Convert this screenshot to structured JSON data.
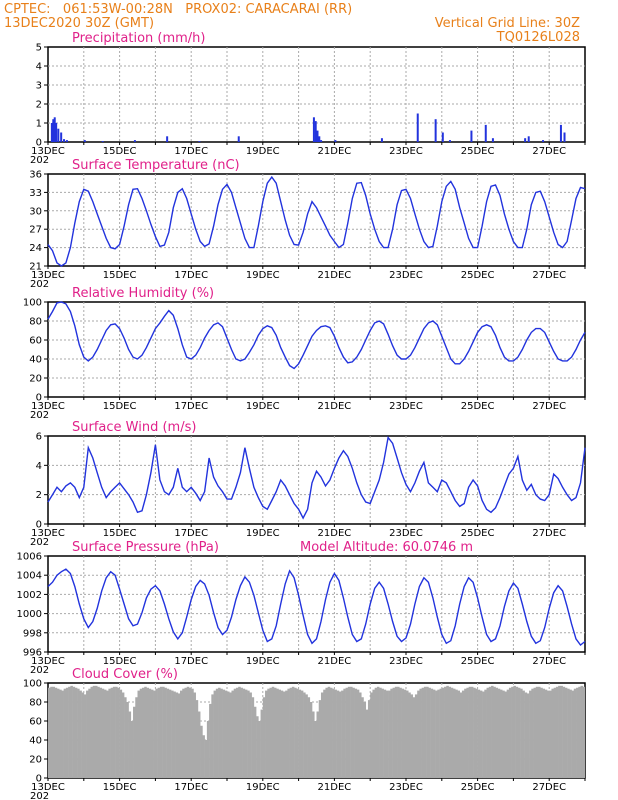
{
  "header": {
    "left_line1": "CPTEC:   061:53W-00:28N   PROX02: CARACARAI (RR)",
    "left_line2": "13DEC2020 30Z (GMT)",
    "right_line2": "Vertical Grid Line: 30Z",
    "right_line3": "TQ0126L028"
  },
  "colors": {
    "header": "#e8801a",
    "title": "#e0218a",
    "series": "#2233dd",
    "cloud": "#aaaaaa",
    "grid": "#aaaaaa"
  },
  "x_axis": {
    "tick_labels": [
      "13DEC",
      "15DEC",
      "17DEC",
      "19DEC",
      "21DEC",
      "23DEC",
      "25DEC",
      "27DEC"
    ],
    "year_stub": "202"
  },
  "chart_data": [
    {
      "type": "bar",
      "title": "Precipitation (mm/h)",
      "ylim": [
        0,
        5
      ],
      "yticks": [
        "0",
        "1",
        "2",
        "3",
        "4",
        "5"
      ],
      "x_days_start": "13DEC2020",
      "x": [
        0.08,
        0.12,
        0.16,
        0.2,
        0.26,
        0.34,
        0.42,
        0.5,
        1.0,
        1.5,
        2.4,
        3.3,
        4.2,
        5.3,
        7.4,
        7.45,
        7.5,
        7.55,
        7.6,
        8.0,
        9.3,
        10.3,
        10.8,
        11.0,
        11.2,
        11.8,
        12.2,
        12.4,
        13.3,
        13.4,
        13.8,
        14.3,
        14.4
      ],
      "values": [
        1.0,
        1.2,
        1.3,
        1.0,
        0.7,
        0.5,
        0.15,
        0.1,
        0.1,
        0.05,
        0.1,
        0.3,
        0.05,
        0.3,
        1.3,
        1.1,
        0.6,
        0.3,
        0.1,
        0.1,
        0.2,
        1.5,
        1.2,
        0.5,
        0.1,
        0.6,
        0.9,
        0.2,
        0.2,
        0.3,
        0.1,
        0.9,
        0.5
      ]
    },
    {
      "type": "line",
      "title": "Surface Temperature (nC)",
      "ylim": [
        21,
        36
      ],
      "yticks": [
        "21",
        "24",
        "27",
        "30",
        "33",
        "36"
      ],
      "series": [
        {
          "x_step_days": 0.125,
          "values": [
            24.5,
            23.5,
            21.5,
            21,
            21.5,
            24,
            28,
            31.5,
            33.5,
            33.2,
            31.5,
            29.5,
            27.5,
            25.5,
            24,
            23.8,
            24.5,
            27.5,
            31,
            33.5,
            33.6,
            32,
            30,
            27.8,
            25.8,
            24.2,
            24.4,
            26.5,
            30.5,
            33,
            33.6,
            32,
            29.5,
            27,
            25,
            24.2,
            24.6,
            27.5,
            31,
            33.5,
            34.3,
            33,
            30.5,
            28,
            25.5,
            24,
            24,
            27.5,
            31.5,
            34.5,
            35.5,
            34.5,
            31.5,
            28.5,
            26,
            24.5,
            24.4,
            26.5,
            29.5,
            31.5,
            30.5,
            29,
            27.5,
            26,
            25,
            24,
            24.5,
            28,
            32,
            34.5,
            34.6,
            32.5,
            29.5,
            27,
            25,
            24,
            24,
            27,
            31,
            33.3,
            33.5,
            32,
            29.5,
            27,
            25,
            24,
            24.2,
            27.5,
            31.5,
            34,
            34.8,
            33.5,
            30.5,
            28,
            25.5,
            24,
            24,
            27.5,
            31.5,
            34,
            34.2,
            32.5,
            29.5,
            27,
            25,
            24,
            24,
            27,
            31,
            33,
            33.2,
            31.5,
            29,
            26.5,
            24.5,
            24,
            25,
            28.5,
            32,
            33.8,
            33.6,
            32,
            29.5,
            27,
            25,
            24,
            25,
            28.5,
            32.5,
            34.8,
            34.5,
            32.5,
            29.5,
            27,
            25,
            24.2,
            25,
            28,
            31.5,
            33.5,
            34,
            33,
            31,
            32.5
          ]
        }
      ]
    },
    {
      "type": "line",
      "title": "Relative Humidity (%)",
      "ylim": [
        0,
        100
      ],
      "yticks": [
        "0",
        "20",
        "40",
        "60",
        "80",
        "100"
      ],
      "series": [
        {
          "x_step_days": 0.125,
          "values": [
            82,
            90,
            99,
            100,
            98,
            90,
            75,
            55,
            42,
            38,
            42,
            50,
            60,
            70,
            76,
            77,
            72,
            62,
            50,
            42,
            40,
            44,
            52,
            62,
            72,
            78,
            85,
            91,
            86,
            72,
            55,
            42,
            40,
            44,
            52,
            62,
            70,
            76,
            78,
            74,
            62,
            50,
            40,
            38,
            40,
            47,
            55,
            65,
            72,
            75,
            73,
            65,
            52,
            42,
            33,
            30,
            35,
            44,
            54,
            64,
            70,
            74,
            75,
            73,
            64,
            52,
            42,
            36,
            37,
            42,
            50,
            60,
            70,
            78,
            80,
            77,
            66,
            54,
            44,
            40,
            40,
            44,
            52,
            62,
            72,
            78,
            80,
            76,
            64,
            52,
            40,
            35,
            35,
            40,
            48,
            58,
            68,
            74,
            76,
            74,
            65,
            52,
            42,
            38,
            38,
            42,
            50,
            60,
            68,
            72,
            72,
            68,
            58,
            48,
            40,
            38,
            38,
            42,
            50,
            60,
            68,
            72,
            72,
            70,
            60,
            50,
            40,
            38,
            38,
            40,
            48,
            58,
            68,
            72,
            73,
            70,
            60,
            50,
            40,
            36,
            36,
            40,
            47,
            58,
            66,
            70,
            72,
            66,
            52,
            42,
            38,
            38,
            40,
            45
          ]
        }
      ]
    },
    {
      "type": "line",
      "title": "Surface Wind (m/s)",
      "ylim": [
        0,
        6
      ],
      "yticks": [
        "0",
        "2",
        "4",
        "6"
      ],
      "series": [
        {
          "x_step_days": 0.125,
          "values": [
            1.5,
            2,
            2.5,
            2.2,
            2.6,
            2.8,
            2.5,
            1.8,
            2.5,
            5.2,
            4.5,
            3.5,
            2.5,
            1.8,
            2.2,
            2.5,
            2.8,
            2.4,
            2,
            1.5,
            0.8,
            0.9,
            2,
            3.5,
            5.4,
            3,
            2.2,
            2,
            2.5,
            3.8,
            2.5,
            2.2,
            2.5,
            2.1,
            1.6,
            2.2,
            4.5,
            3.2,
            2.6,
            2.2,
            1.7,
            1.7,
            2.5,
            3.5,
            5.2,
            3.8,
            2.5,
            1.8,
            1.2,
            1,
            1.6,
            2.2,
            3,
            2.6,
            2,
            1.4,
            1,
            0.4,
            1,
            2.8,
            3.6,
            3.2,
            2.6,
            3,
            3.8,
            4.5,
            5,
            4.6,
            3.8,
            2.8,
            2,
            1.5,
            1.4,
            2.2,
            3,
            4.2,
            5.9,
            5.5,
            4.5,
            3.5,
            2.7,
            2.2,
            2.8,
            3.6,
            4.2,
            2.8,
            2.5,
            2.2,
            3,
            2.8,
            2.2,
            1.6,
            1.2,
            1.4,
            2.5,
            3,
            2.6,
            1.6,
            1,
            0.8,
            1.1,
            1.8,
            2.6,
            3.4,
            3.8,
            4.6,
            3,
            2.3,
            2.7,
            2,
            1.7,
            1.6,
            2,
            3.4,
            3.1,
            2.5,
            2,
            1.6,
            1.8,
            2.8,
            5.2,
            4,
            3.5,
            3.8,
            3,
            2.6,
            2.2,
            1.8,
            1.7,
            1.4,
            0.8,
            1.6,
            2.5,
            4.4,
            5,
            3.4,
            2.3,
            2.7,
            2,
            1.9,
            1.4,
            1.6,
            2,
            1.4,
            1.8,
            2.4,
            1.6,
            0.9,
            0.7,
            1,
            1.9,
            3,
            3.6,
            3.4,
            2.6,
            3,
            3.5,
            2.4,
            1.7,
            2,
            2.6,
            3.3,
            2.6,
            1.8,
            1.5,
            1.3,
            1.8,
            3.3,
            5.1,
            3.8,
            3.4,
            2.6,
            1.8,
            1.6,
            1.2,
            1.6,
            2.5,
            3.8,
            6.2,
            4.8,
            4.2,
            3.2,
            2.8,
            2.2,
            2.4,
            2.7,
            2.6,
            2.2,
            1.6,
            1.7,
            2.8,
            4.8,
            6.4,
            4,
            3,
            2.3,
            2.2,
            1.8,
            1.4,
            1,
            1.5,
            2.6,
            2.4,
            1.8,
            1.6,
            2.4,
            3,
            2.7,
            2.2,
            1.6,
            1.4,
            2,
            3.3,
            4.2,
            5.6,
            3.9,
            2.4,
            1.5,
            1.2,
            1.6,
            2.5,
            3.5,
            2.4,
            1.8,
            1.4,
            2.6,
            3.5,
            5.2,
            6.5,
            4.6,
            3.2,
            3,
            2.4,
            2,
            1.8,
            1.8,
            2.5,
            3.5,
            3.2,
            2.7,
            2.6,
            3.4,
            2.6,
            2.2,
            2.5,
            2.6,
            2.4,
            2.8,
            4.2,
            6,
            4.2,
            3,
            2.6,
            3,
            3.6,
            3.4,
            2.8,
            2.2,
            1.8,
            1.5,
            1.4
          ]
        }
      ]
    },
    {
      "type": "line",
      "title": "Surface Pressure (hPa)",
      "annotation": "Model Altitude: 60.0746 m",
      "ylim": [
        996,
        1007
      ],
      "yticks": [
        "996",
        "998",
        "1000",
        "1002",
        "1004",
        "1006"
      ],
      "series": [
        {
          "x_step_days": 0.125,
          "values": [
            1003.5,
            1004,
            1004.8,
            1005.2,
            1005.5,
            1005,
            1003.5,
            1001.5,
            999.8,
            998.8,
            999.5,
            1001,
            1003,
            1004.5,
            1005.2,
            1004.8,
            1003.2,
            1001.5,
            999.8,
            999,
            999.2,
            1000.5,
            1002.2,
            1003.2,
            1003.6,
            1003,
            1001.5,
            999.8,
            998.3,
            997.5,
            998.2,
            1000,
            1002,
            1003.5,
            1004.2,
            1003.8,
            1002.5,
            1000.5,
            998.8,
            998,
            998.5,
            1000,
            1002,
            1003.6,
            1004.6,
            1004,
            1002.5,
            1000.5,
            998.5,
            997.2,
            997.5,
            999,
            1001.5,
            1003.8,
            1005.3,
            1004.5,
            1002.5,
            1000.2,
            998,
            997,
            997.5,
            999.5,
            1002,
            1004,
            1005,
            1004.2,
            1002.2,
            1000,
            998,
            997.2,
            997.5,
            999.2,
            1001.5,
            1003.3,
            1004,
            1003.3,
            1001.5,
            999.5,
            997.8,
            997.2,
            997.6,
            999.2,
            1001.5,
            1003.5,
            1004.5,
            1004,
            1002.2,
            1000,
            998,
            997,
            997.3,
            999,
            1001.5,
            1003.5,
            1004.5,
            1004,
            1002.2,
            1000,
            998,
            997.2,
            997.5,
            999,
            1001.2,
            1003,
            1003.9,
            1003.3,
            1001.5,
            999.5,
            997.8,
            997,
            997.3,
            998.8,
            1001,
            1002.8,
            1003.6,
            1003,
            1001.2,
            999.2,
            997.5,
            996.8,
            997.2,
            998.8,
            1001,
            1002.8,
            1003.5,
            1002.8,
            1001,
            999,
            997.5,
            996.8,
            997.3,
            999,
            1001.2,
            1003,
            1003.8,
            1003,
            1001.2,
            999,
            997.3,
            996.5,
            997.2,
            998.8,
            1001,
            1002.8,
            1003.3,
            1002.8,
            1001,
            999,
            997.5,
            996.5,
            996.8,
            998
          ]
        }
      ]
    },
    {
      "type": "bar",
      "title": "Cloud Cover (%)",
      "ylim": [
        0,
        100
      ],
      "yticks": [
        "0",
        "20",
        "40",
        "60",
        "80",
        "100"
      ],
      "series": [
        {
          "x_step_days": 0.0625,
          "values": [
            95,
            96,
            96,
            95,
            94,
            93,
            92,
            94,
            95,
            96,
            97,
            96,
            95,
            94,
            92,
            90,
            88,
            92,
            94,
            96,
            97,
            97,
            96,
            95,
            94,
            93,
            92,
            94,
            95,
            96,
            96,
            95,
            93,
            90,
            85,
            80,
            70,
            60,
            75,
            85,
            92,
            94,
            95,
            96,
            95,
            94,
            93,
            92,
            94,
            95,
            96,
            96,
            95,
            94,
            93,
            92,
            91,
            90,
            89,
            92,
            94,
            95,
            96,
            95,
            94,
            90,
            82,
            70,
            55,
            45,
            40,
            60,
            78,
            88,
            92,
            94,
            95,
            94,
            93,
            92,
            91,
            90,
            92,
            94,
            95,
            96,
            95,
            94,
            93,
            92,
            90,
            85,
            75,
            65,
            60,
            72,
            85,
            92,
            94,
            95,
            96,
            95,
            94,
            93,
            92,
            91,
            92,
            94,
            95,
            96,
            95,
            94,
            93,
            92,
            90,
            88,
            85,
            80,
            70,
            60,
            70,
            82,
            90,
            93,
            95,
            96,
            95,
            94,
            93,
            92,
            91,
            92,
            94,
            95,
            96,
            96,
            95,
            94,
            93,
            90,
            85,
            80,
            72,
            82,
            90,
            93,
            95,
            96,
            95,
            94,
            93,
            92,
            92,
            94,
            95,
            96,
            96,
            95,
            94,
            93,
            92,
            90,
            88,
            85,
            88,
            92,
            94,
            95,
            96,
            96,
            95,
            94,
            93,
            92,
            93,
            94,
            95,
            96,
            97,
            96,
            95,
            94,
            93,
            92,
            90,
            92,
            94,
            95,
            96,
            96,
            95,
            94,
            93,
            92,
            91,
            93,
            95,
            96,
            97,
            96,
            95,
            94,
            93,
            92,
            91,
            93,
            95,
            96,
            97,
            96,
            95,
            94,
            92,
            90,
            89,
            92,
            94,
            95,
            96,
            96,
            95,
            94,
            93,
            92,
            92,
            94,
            95,
            96,
            97,
            97,
            96,
            95,
            94,
            93,
            92,
            94,
            95,
            96,
            97,
            96,
            95
          ]
        }
      ]
    }
  ]
}
